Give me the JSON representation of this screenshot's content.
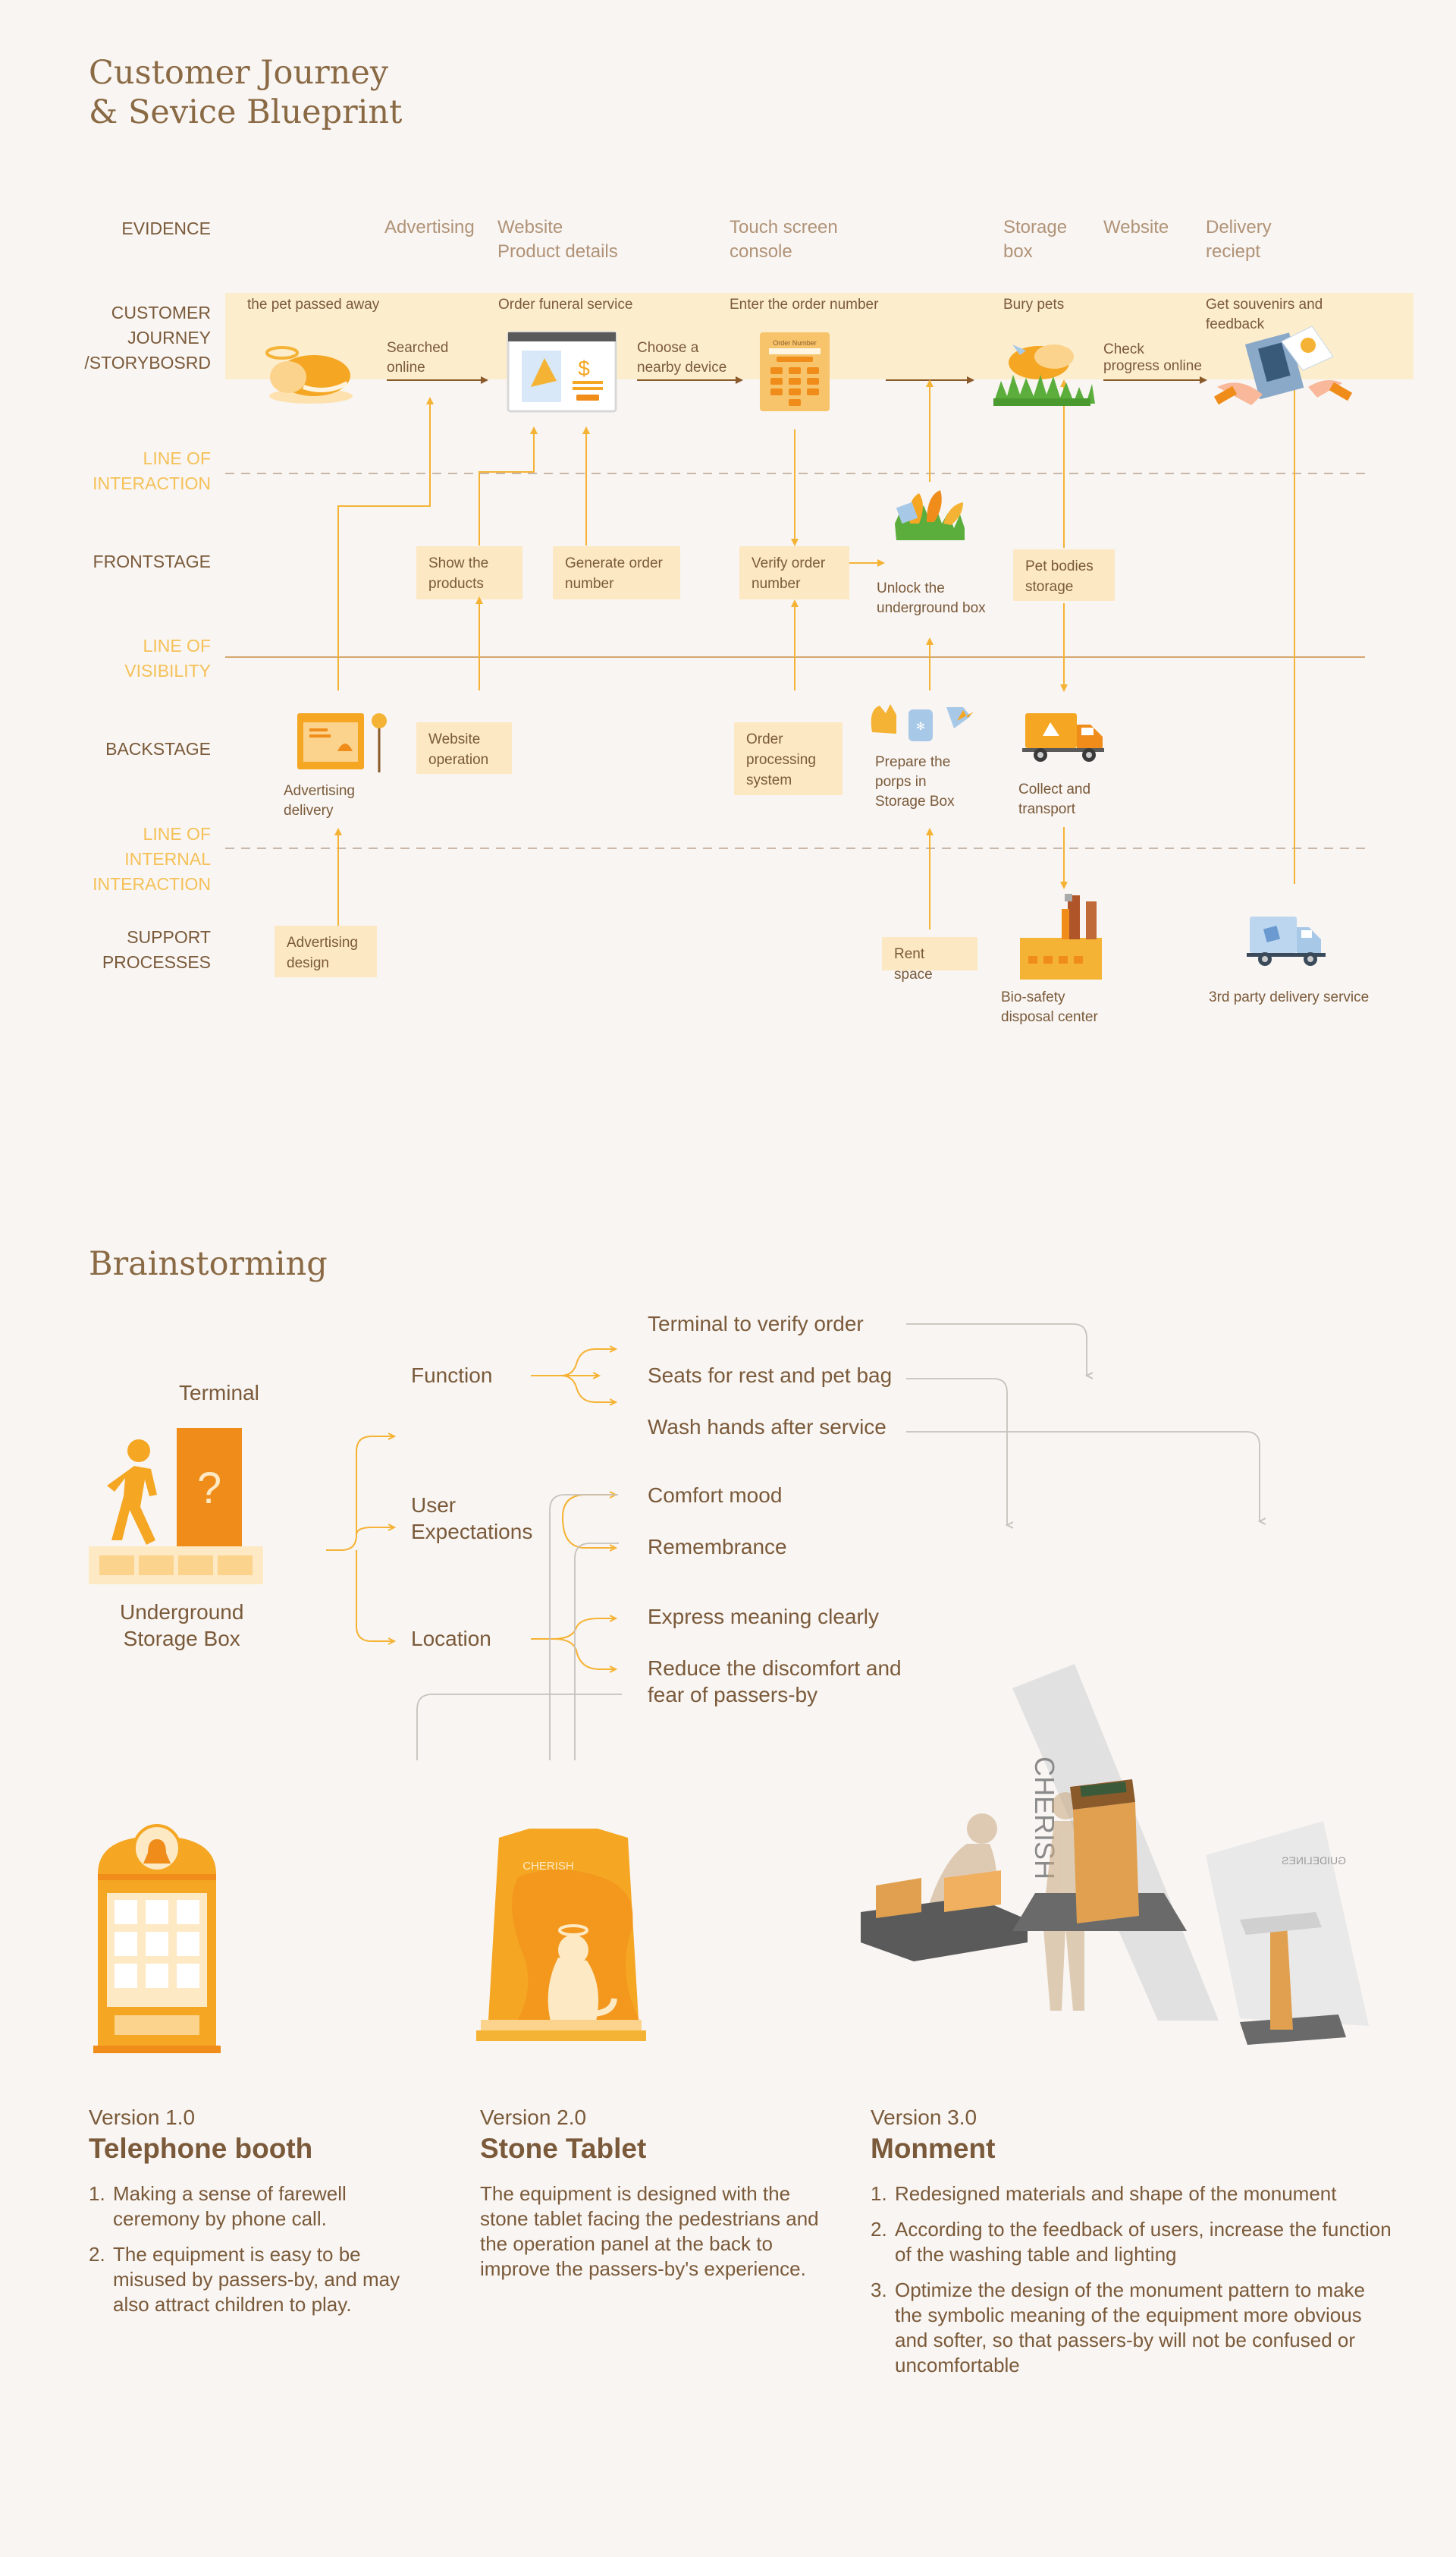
{
  "header": {
    "title_line1": "Customer Journey",
    "title_line2": "& Sevice Blueprint"
  },
  "rows": {
    "evidence": "EVIDENCE",
    "journey1": "CUSTOMER",
    "journey2": "JOURNEY",
    "journey3": "/STORYBOSRD",
    "loi1": "LINE OF",
    "loi2": "INTERACTION",
    "frontstage": "FRONTSTAGE",
    "lov1": "LINE OF",
    "lov2": "VISIBILITY",
    "backstage": "BACKSTAGE",
    "lii1": "LINE OF",
    "lii2": "INTERNAL",
    "lii3": "INTERACTION",
    "support1": "SUPPORT",
    "support2": "PROCESSES"
  },
  "evidence": {
    "advertising": "Advertising",
    "website1": "Website",
    "website2": "Product details",
    "touch1": "Touch screen",
    "touch2": "console",
    "storage1": "Storage",
    "storage2": "box",
    "website_b": "Website",
    "delivery1": "Delivery",
    "delivery2": "reciept"
  },
  "journey": {
    "passed": "the pet passed away",
    "order": "Order funeral service",
    "enter": "Enter the order number",
    "bury": "Bury pets",
    "souvenir1": "Get souvenirs and",
    "souvenir2": "feedback",
    "searched1": "Searched",
    "searched2": "online",
    "choose1": "Choose a",
    "choose2": "nearby device",
    "check1": "Check",
    "check2": "progress online"
  },
  "frontstage": {
    "show1": "Show the",
    "show2": "products",
    "gen1": "Generate order",
    "gen2": "number",
    "verify1": "Verify order",
    "verify2": "number",
    "unlock1": "Unlock the",
    "unlock2": "underground box",
    "petbodies1": "Pet bodies",
    "petbodies2": "storage"
  },
  "backstage": {
    "addelivery1": "Advertising",
    "addelivery2": "delivery",
    "webop1": "Website",
    "webop2": "operation",
    "proc1": "Order",
    "proc2": "processing",
    "proc3": "system",
    "prep1": "Prepare the",
    "prep2": "porps in",
    "prep3": "Storage Box",
    "collect1": "Collect and",
    "collect2": "transport"
  },
  "support": {
    "addesign1": "Advertising",
    "addesign2": "design",
    "rent": "Rent space",
    "bio1": "Bio-safety",
    "bio2": "disposal center",
    "thirdparty": "3rd party delivery service"
  },
  "brainstorm": {
    "title": "Brainstorming",
    "terminal": "Terminal",
    "box1": "Underground",
    "box2": "Storage Box",
    "function": "Function",
    "expect1": "User",
    "expect2": "Expectations",
    "location": "Location",
    "f1": "Terminal  to verify order",
    "f2": "Seats for rest and pet bag",
    "f3": "Wash hands after service",
    "e1": "Comfort mood",
    "e2": "Remembrance",
    "l1": "Express meaning clearly",
    "l2a": "Reduce the discomfort and",
    "l2b": "fear of passers-by"
  },
  "versions": [
    {
      "version": "Version 1.0",
      "name": "Telephone booth",
      "points": [
        "Making a sense of farewell ceremony by phone call.",
        "The equipment is easy to be misused by passers-by, and may also attract children to play."
      ]
    },
    {
      "version": "Version 2.0",
      "name": "Stone Tablet",
      "desc": "The equipment is designed with the stone tablet facing the pedestrians and the operation panel at the back to improve the passers-by's experience."
    },
    {
      "version": "Version 3.0",
      "name": "Monment",
      "points": [
        "Redesigned materials and shape of the monument",
        "According to the feedback of users, increase the function of the washing table and lighting",
        "Optimize the design of the monument pattern to make the symbolic meaning of the equipment more obvious and softer, so that passers-by will not be confused or uncomfortable"
      ]
    }
  ],
  "numbers": [
    "1.",
    "2.",
    "3."
  ],
  "tablet_text": "CHERISH",
  "monument_text": "CHERISH",
  "guidelines_text": "GUIDELINES",
  "screen": {
    "order_title": "Order Number",
    "confirm": "confirm"
  },
  "colors": {
    "bg": "#f9f5f2",
    "accent": "#f5b335",
    "box": "#fce8c3",
    "text": "#7a5a3a",
    "muted": "#b09378",
    "deep_orange": "#f08c1a"
  },
  "icons": [
    "sleeping-pet-icon",
    "website-browser-icon",
    "keypad-console-icon",
    "burial-grass-icon",
    "souvenir-hands-icon",
    "flowers-icon",
    "advertising-board-icon",
    "props-icon",
    "delivery-truck-icon",
    "factory-icon",
    "blue-truck-icon",
    "walking-person-icon",
    "question-box-icon",
    "telephone-booth-icon",
    "stone-tablet-icon",
    "monument-render-icon"
  ]
}
